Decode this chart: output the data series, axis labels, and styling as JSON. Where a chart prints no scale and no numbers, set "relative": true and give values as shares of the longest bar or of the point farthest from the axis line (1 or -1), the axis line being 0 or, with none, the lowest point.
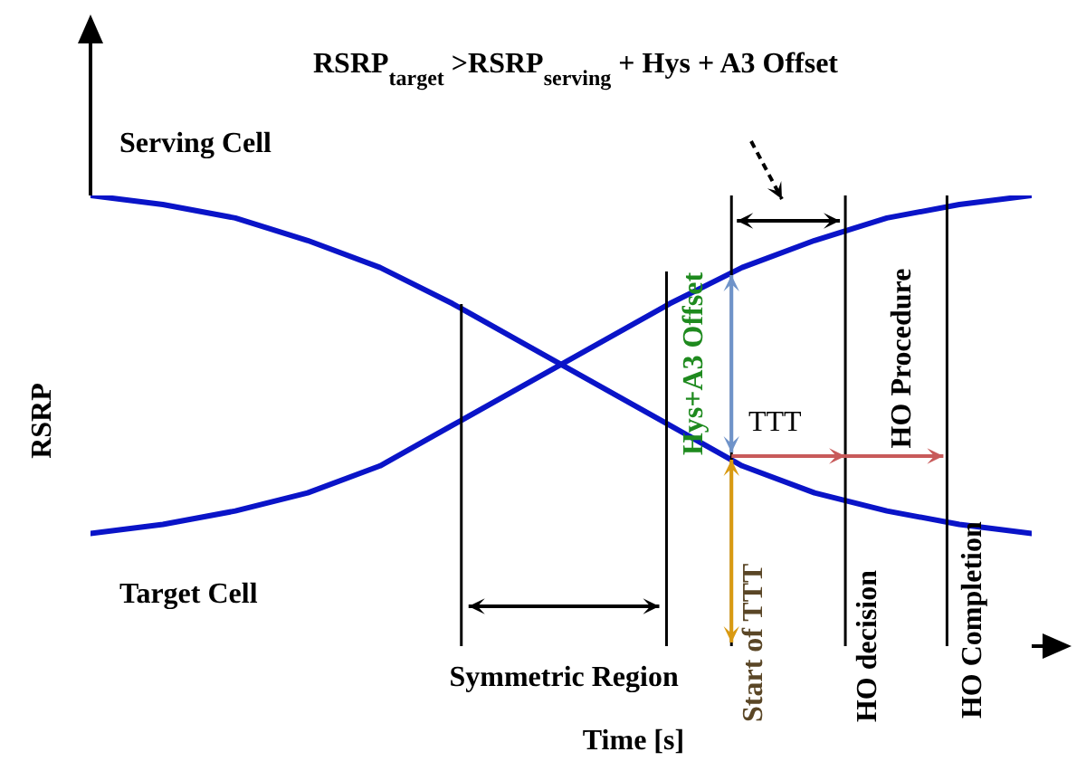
{
  "chart_data": {
    "type": "line",
    "relative": true,
    "title": "RSRP$_{target}$ >RSRP$_{serving}$ + Hys + A3 Offset",
    "xlabel": "Time [s]",
    "ylabel": "RSRP",
    "categories": [
      null,
      null,
      null,
      null,
      null,
      null,
      null,
      null,
      null,
      null,
      null,
      null,
      null,
      null
    ],
    "marker": "none",
    "line_style": "solid",
    "series": [
      {
        "name": "Serving Cell",
        "color": "#0a14c8",
        "values": [
          1.0,
          0.98,
          0.95,
          0.9,
          0.84,
          0.76,
          0.67,
          0.58,
          0.49,
          0.4,
          0.34,
          0.3,
          0.27,
          0.25
        ]
      },
      {
        "name": "Target Cell",
        "color": "#0a14c8",
        "values": [
          0.25,
          0.27,
          0.3,
          0.34,
          0.4,
          0.49,
          0.58,
          0.67,
          0.76,
          0.84,
          0.9,
          0.95,
          0.98,
          1.0
        ]
      }
    ],
    "annotations": [
      "Symmetric Region",
      "Hys+A3 Offset",
      "TTT",
      "HO Procedure",
      "Start of TTT",
      "HO decision",
      "HO Completion"
    ]
  }
}
